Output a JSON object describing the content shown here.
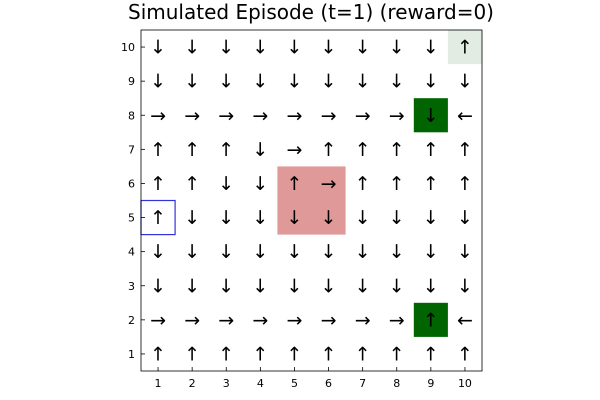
{
  "chart_data": {
    "type": "heatmap",
    "title": "Simulated Episode (t=1) (reward=0)",
    "xlabel": "",
    "ylabel": "",
    "xlim": [
      0.5,
      10.5
    ],
    "ylim": [
      0.5,
      10.5
    ],
    "x_ticks": [
      "1",
      "2",
      "3",
      "4",
      "5",
      "6",
      "7",
      "8",
      "9",
      "10"
    ],
    "y_ticks": [
      "1",
      "2",
      "3",
      "4",
      "5",
      "6",
      "7",
      "8",
      "9",
      "10"
    ],
    "grid": false,
    "policy_rows_top_to_bottom": [
      {
        "y": 10,
        "arrows": [
          "↓",
          "↓",
          "↓",
          "↓",
          "↓",
          "↓",
          "↓",
          "↓",
          "↓",
          "↑"
        ]
      },
      {
        "y": 9,
        "arrows": [
          "↓",
          "↓",
          "↓",
          "↓",
          "↓",
          "↓",
          "↓",
          "↓",
          "↓",
          "↓"
        ]
      },
      {
        "y": 8,
        "arrows": [
          "→",
          "→",
          "→",
          "→",
          "→",
          "→",
          "→",
          "→",
          "↓",
          "←"
        ]
      },
      {
        "y": 7,
        "arrows": [
          "↑",
          "↑",
          "↑",
          "↓",
          "→",
          "↑",
          "↑",
          "↑",
          "↑",
          "↑"
        ]
      },
      {
        "y": 6,
        "arrows": [
          "↑",
          "↑",
          "↓",
          "↓",
          "↑",
          "→",
          "↑",
          "↑",
          "↑",
          "↑"
        ]
      },
      {
        "y": 5,
        "arrows": [
          "↑",
          "↓",
          "↓",
          "↓",
          "↓",
          "↓",
          "↓",
          "↓",
          "↓",
          "↓"
        ]
      },
      {
        "y": 4,
        "arrows": [
          "↓",
          "↓",
          "↓",
          "↓",
          "↓",
          "↓",
          "↓",
          "↓",
          "↓",
          "↓"
        ]
      },
      {
        "y": 3,
        "arrows": [
          "↓",
          "↓",
          "↓",
          "↓",
          "↓",
          "↓",
          "↓",
          "↓",
          "↓",
          "↓"
        ]
      },
      {
        "y": 2,
        "arrows": [
          "→",
          "→",
          "→",
          "→",
          "→",
          "→",
          "→",
          "→",
          "↑",
          "←"
        ]
      },
      {
        "y": 1,
        "arrows": [
          "↑",
          "↑",
          "↑",
          "↑",
          "↑",
          "↑",
          "↑",
          "↑",
          "↑",
          "↑"
        ]
      }
    ],
    "highlights": [
      {
        "kind": "goal",
        "cells": [
          [
            9,
            8
          ]
        ],
        "color": "#006400"
      },
      {
        "kind": "goal",
        "cells": [
          [
            9,
            2
          ]
        ],
        "color": "#006400"
      },
      {
        "kind": "trap",
        "cells": [
          [
            5,
            5
          ],
          [
            6,
            5
          ],
          [
            5,
            6
          ],
          [
            6,
            6
          ]
        ],
        "color": "#e09999"
      },
      {
        "kind": "visited",
        "cells": [
          [
            10,
            10
          ]
        ],
        "color": "#e3ece3"
      }
    ],
    "agent": {
      "x": 1,
      "y": 5,
      "color": "#3333dd"
    }
  }
}
